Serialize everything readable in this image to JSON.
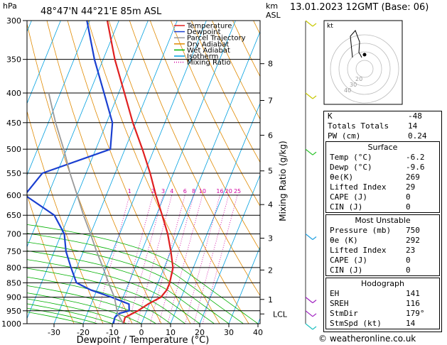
{
  "header": {
    "pressure_unit": "hPa",
    "location": "48°47'N  44°21'E  85m  ASL",
    "alt_unit_line1": "km",
    "alt_unit_line2": "ASL",
    "date": "13.01.2023  12GMT  (Base: 06)"
  },
  "legend": [
    {
      "label": "Temperature",
      "color": "#e02020",
      "style": "solid"
    },
    {
      "label": "Dewpoint",
      "color": "#1a3fd0",
      "style": "solid"
    },
    {
      "label": "Parcel Trajectory",
      "color": "#9a9a9a",
      "style": "solid"
    },
    {
      "label": "Dry Adiabat",
      "color": "#e08a00",
      "style": "solid"
    },
    {
      "label": "Wet Adiabat",
      "color": "#00b000",
      "style": "solid"
    },
    {
      "label": "Isotherm",
      "color": "#00a0e0",
      "style": "solid"
    },
    {
      "label": "Mixing Ratio",
      "color": "#d000a0",
      "style": "dotted"
    }
  ],
  "chart_data": {
    "type": "line",
    "xlabel": "Dewpoint / Temperature (°C)",
    "ylabel_right": "Mixing Ratio (g/kg)",
    "x_ticks": [
      -30,
      -20,
      -10,
      0,
      10,
      20,
      30,
      40
    ],
    "pressure_levels": [
      300,
      350,
      400,
      450,
      500,
      550,
      600,
      650,
      700,
      750,
      800,
      850,
      900,
      950,
      1000
    ],
    "km_ticks": [
      {
        "label": "8",
        "p": 356
      },
      {
        "label": "7",
        "p": 412
      },
      {
        "label": "6",
        "p": 473
      },
      {
        "label": "5",
        "p": 545
      },
      {
        "label": "4",
        "p": 623
      },
      {
        "label": "3",
        "p": 712
      },
      {
        "label": "2",
        "p": 808
      },
      {
        "label": "1",
        "p": 908
      },
      {
        "label": "LCL",
        "p": 962
      }
    ],
    "mixing_ratio_labels": [
      "1",
      "2",
      "3",
      "4",
      "6",
      "8",
      "10",
      "16",
      "20",
      "25"
    ],
    "series": [
      {
        "name": "Temperature",
        "points": [
          [
            1000,
            -6.2
          ],
          [
            975,
            -6.5
          ],
          [
            950,
            -3
          ],
          [
            925,
            -0.5
          ],
          [
            900,
            3
          ],
          [
            875,
            4
          ],
          [
            850,
            4
          ],
          [
            800,
            3
          ],
          [
            750,
            0
          ],
          [
            700,
            -3.5
          ],
          [
            650,
            -8
          ],
          [
            600,
            -13
          ],
          [
            550,
            -18
          ],
          [
            500,
            -24
          ],
          [
            450,
            -31
          ],
          [
            400,
            -38
          ],
          [
            350,
            -46
          ],
          [
            300,
            -54
          ]
        ]
      },
      {
        "name": "Dewpoint",
        "points": [
          [
            1000,
            -9.6
          ],
          [
            975,
            -10
          ],
          [
            960,
            -9
          ],
          [
            950,
            -6
          ],
          [
            925,
            -7
          ],
          [
            900,
            -14
          ],
          [
            875,
            -22
          ],
          [
            850,
            -28
          ],
          [
            800,
            -32
          ],
          [
            750,
            -36
          ],
          [
            700,
            -39
          ],
          [
            650,
            -45
          ],
          [
            600,
            -58
          ],
          [
            550,
            -55
          ],
          [
            500,
            -35
          ],
          [
            450,
            -38
          ],
          [
            400,
            -45
          ],
          [
            350,
            -53
          ],
          [
            300,
            -61
          ]
        ]
      },
      {
        "name": "Parcel Trajectory",
        "points": [
          [
            1000,
            -6.2
          ],
          [
            962,
            -9.5
          ],
          [
            900,
            -13
          ],
          [
            850,
            -17
          ],
          [
            800,
            -21
          ],
          [
            750,
            -25.5
          ],
          [
            700,
            -30
          ],
          [
            650,
            -35
          ],
          [
            600,
            -40
          ],
          [
            550,
            -45.5
          ],
          [
            500,
            -51
          ],
          [
            450,
            -57.5
          ],
          [
            400,
            -64
          ]
        ]
      }
    ]
  },
  "indices": [
    {
      "label": "K",
      "value": "-48"
    },
    {
      "label": "Totals Totals",
      "value": "14"
    },
    {
      "label": "PW (cm)",
      "value": "0.24"
    }
  ],
  "surface": {
    "title": "Surface",
    "rows": [
      {
        "label": "Temp (°C)",
        "value": "-6.2"
      },
      {
        "label": "Dewp (°C)",
        "value": "-9.6"
      },
      {
        "label": "θe(K)",
        "value": "269"
      },
      {
        "label": "Lifted Index",
        "value": "29"
      },
      {
        "label": "CAPE (J)",
        "value": "0"
      },
      {
        "label": "CIN (J)",
        "value": "0"
      }
    ]
  },
  "most_unstable": {
    "title": "Most Unstable",
    "rows": [
      {
        "label": "Pressure (mb)",
        "value": "750"
      },
      {
        "label": "θe (K)",
        "value": "292"
      },
      {
        "label": "Lifted Index",
        "value": "23"
      },
      {
        "label": "CAPE (J)",
        "value": "0"
      },
      {
        "label": "CIN (J)",
        "value": "0"
      }
    ]
  },
  "hodograph_table": {
    "title": "Hodograph",
    "rows": [
      {
        "label": "EH",
        "value": "141"
      },
      {
        "label": "SREH",
        "value": "116"
      },
      {
        "label": "StmDir",
        "value": "179°"
      },
      {
        "label": "StmSpd (kt)",
        "value": "14"
      }
    ]
  },
  "hodograph": {
    "unit_label": "kt",
    "ring_labels": [
      "20",
      "30",
      "40"
    ]
  },
  "credit": "© weatheronline.co.uk"
}
